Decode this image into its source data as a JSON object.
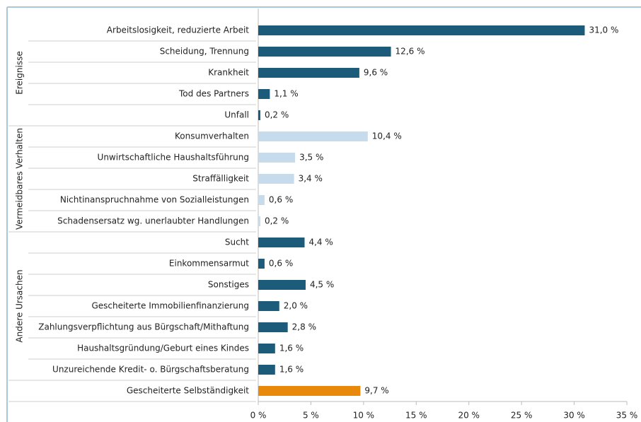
{
  "chart_data": {
    "type": "hbar",
    "categories": [
      "Arbeitslosigkeit, reduzierte Arbeit",
      "Scheidung, Trennung",
      "Krankheit",
      "Tod des Partners",
      "Unfall",
      "Konsumverhalten",
      "Unwirtschaftliche Haushaltsführung",
      "Straffälligkeit",
      "Nichtinanspruchnahme von Sozialleistungen",
      "Schadensersatz wg. unerlaubter Handlungen",
      "Sucht",
      "Einkommensarmut",
      "Sonstiges",
      "Gescheiterte Immobilienfinanzierung",
      "Zahlungsverpflichtung aus Bürgschaft/Mithaftung",
      "Haushaltsgründung/Geburt eines Kindes",
      "Unzureichende Kredit- o. Bürgschaftsberatung",
      "Gescheiterte Selbständigkeit"
    ],
    "values": [
      31.0,
      12.6,
      9.6,
      1.1,
      0.2,
      10.4,
      3.5,
      3.4,
      0.6,
      0.2,
      4.4,
      0.6,
      4.5,
      2.0,
      2.8,
      1.6,
      1.6,
      9.7
    ],
    "value_labels": [
      "31,0 %",
      "12,6 %",
      "9,6 %",
      "1,1 %",
      "0,2 %",
      "10,4 %",
      "3,5 %",
      "3,4 %",
      "0,6 %",
      "0,2 %",
      "4,4 %",
      "0,6 %",
      "4,5 %",
      "2,0 %",
      "2,8 %",
      "1,6 %",
      "1,6 %",
      "9,7 %"
    ],
    "colors": [
      "#1d5b7b",
      "#1d5b7b",
      "#1d5b7b",
      "#1d5b7b",
      "#1d5b7b",
      "#c6dcec",
      "#c6dcec",
      "#c6dcec",
      "#c6dcec",
      "#c6dcec",
      "#1d5b7b",
      "#1d5b7b",
      "#1d5b7b",
      "#1d5b7b",
      "#1d5b7b",
      "#1d5b7b",
      "#1d5b7b",
      "#e8890c"
    ],
    "groups": [
      {
        "name": "Ereignisse",
        "size": 5
      },
      {
        "name": "Vermeidbares Verhalten",
        "size": 5
      },
      {
        "name": "Andere Ursachen",
        "size": 7
      }
    ],
    "xlim": [
      0,
      35
    ],
    "xticks": [
      {
        "value": 0,
        "label": "0 %"
      },
      {
        "value": 5,
        "label": "5 %"
      },
      {
        "value": 10,
        "label": "10 %"
      },
      {
        "value": 15,
        "label": "15 %"
      },
      {
        "value": 20,
        "label": "20 %"
      },
      {
        "value": 25,
        "label": "25 %"
      },
      {
        "value": 30,
        "label": "30 %"
      },
      {
        "value": 35,
        "label": "35 %"
      }
    ]
  }
}
